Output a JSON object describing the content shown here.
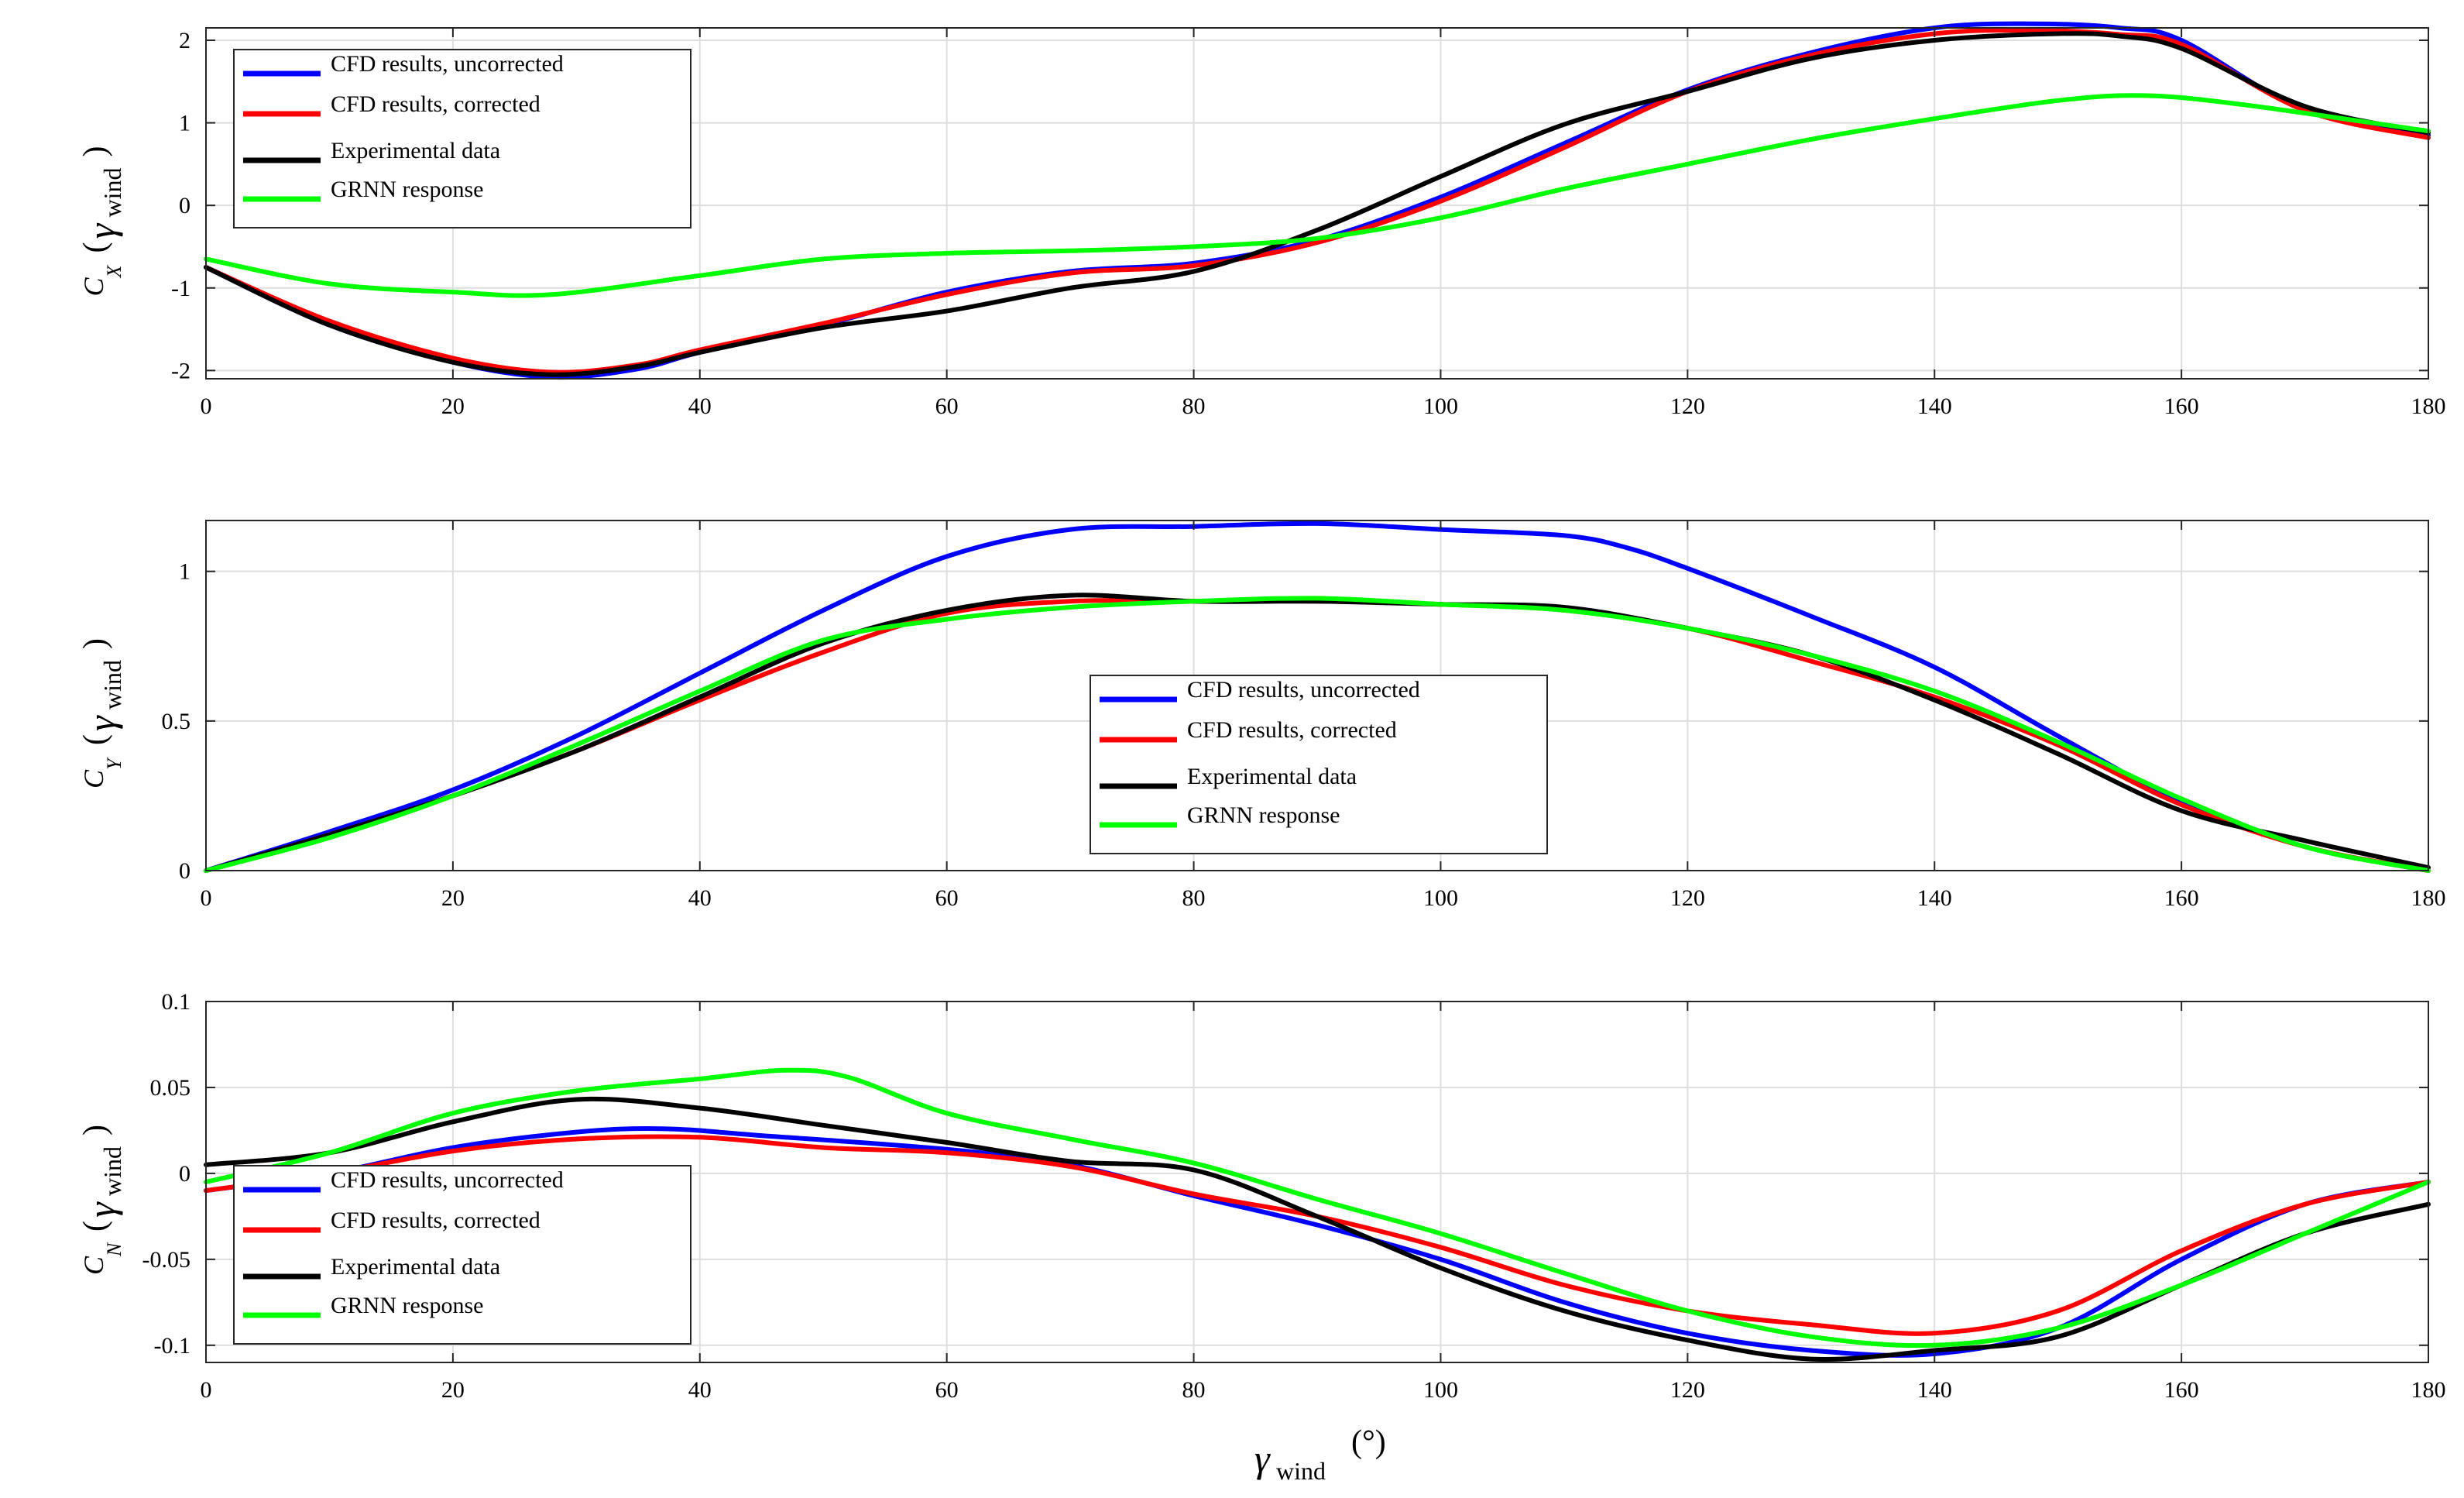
{
  "chart_data": [
    {
      "type": "line",
      "id": "cx",
      "ylabel": {
        "symbol": "C",
        "sub": "X",
        "greek": "γ",
        "wind": "wind",
        "open": "(",
        "close": ")"
      },
      "xlim": [
        0,
        180
      ],
      "ylim": [
        -2.1,
        2.15
      ],
      "xticks": [
        0,
        20,
        40,
        60,
        80,
        100,
        120,
        140,
        160,
        180
      ],
      "yticks": [
        -2,
        -1,
        0,
        1,
        2
      ],
      "ytick_labels": [
        "-2",
        "-1",
        "0",
        "1",
        "2"
      ],
      "legend_position": "top-left",
      "series": [
        {
          "name": "CFD results, uncorrected",
          "color": "#0000ff",
          "x": [
            0,
            10,
            20,
            28,
            35,
            40,
            50,
            60,
            70,
            80,
            90,
            100,
            110,
            120,
            130,
            140,
            148,
            155,
            160,
            170,
            180
          ],
          "y": [
            -0.75,
            -1.45,
            -1.9,
            -2.08,
            -1.98,
            -1.78,
            -1.45,
            -1.05,
            -0.8,
            -0.7,
            -0.42,
            0.1,
            0.75,
            1.4,
            1.85,
            2.15,
            2.2,
            2.15,
            2.0,
            1.15,
            0.85
          ]
        },
        {
          "name": "CFD results, corrected",
          "color": "#ff0000",
          "x": [
            0,
            10,
            20,
            28,
            35,
            40,
            50,
            60,
            70,
            80,
            90,
            100,
            110,
            120,
            130,
            140,
            148,
            155,
            160,
            170,
            180
          ],
          "y": [
            -0.75,
            -1.4,
            -1.85,
            -2.02,
            -1.93,
            -1.75,
            -1.43,
            -1.08,
            -0.82,
            -0.73,
            -0.45,
            0.05,
            0.7,
            1.38,
            1.82,
            2.08,
            2.12,
            2.07,
            1.95,
            1.15,
            0.82
          ]
        },
        {
          "name": "Experimental data",
          "color": "#000000",
          "x": [
            0,
            10,
            20,
            28,
            35,
            40,
            50,
            60,
            70,
            80,
            90,
            100,
            110,
            120,
            130,
            140,
            150,
            155,
            160,
            170,
            180
          ],
          "y": [
            -0.75,
            -1.45,
            -1.9,
            -2.05,
            -1.95,
            -1.78,
            -1.48,
            -1.28,
            -1.0,
            -0.8,
            -0.3,
            0.35,
            0.98,
            1.38,
            1.78,
            2.0,
            2.08,
            2.05,
            1.9,
            1.2,
            0.88
          ]
        },
        {
          "name": "GRNN response",
          "color": "#00ff00",
          "x": [
            0,
            10,
            20,
            28,
            40,
            50,
            60,
            70,
            80,
            90,
            100,
            110,
            120,
            130,
            140,
            150,
            157,
            165,
            180
          ],
          "y": [
            -0.65,
            -0.95,
            -1.05,
            -1.08,
            -0.85,
            -0.65,
            -0.58,
            -0.55,
            -0.5,
            -0.4,
            -0.15,
            0.2,
            0.5,
            0.8,
            1.05,
            1.27,
            1.33,
            1.22,
            0.9
          ]
        }
      ]
    },
    {
      "type": "line",
      "id": "cy",
      "ylabel": {
        "symbol": "C",
        "sub": "Y",
        "greek": "γ",
        "wind": "wind",
        "open": "(",
        "close": ")"
      },
      "xlim": [
        0,
        180
      ],
      "ylim": [
        0,
        1.17
      ],
      "xticks": [
        0,
        20,
        40,
        60,
        80,
        100,
        120,
        140,
        160,
        180
      ],
      "yticks": [
        0,
        0.5,
        1
      ],
      "ytick_labels": [
        "0",
        "0.5",
        "1"
      ],
      "legend_position": "center",
      "series": [
        {
          "name": "CFD results, uncorrected",
          "color": "#0000ff",
          "x": [
            0,
            10,
            20,
            30,
            40,
            50,
            60,
            70,
            80,
            90,
            100,
            110,
            115,
            120,
            130,
            140,
            150,
            160,
            170,
            180
          ],
          "y": [
            0,
            0.13,
            0.27,
            0.45,
            0.66,
            0.87,
            1.05,
            1.14,
            1.15,
            1.16,
            1.14,
            1.12,
            1.08,
            1.01,
            0.85,
            0.68,
            0.45,
            0.23,
            0.08,
            0
          ]
        },
        {
          "name": "CFD results, corrected",
          "color": "#ff0000",
          "x": [
            0,
            10,
            20,
            30,
            40,
            50,
            60,
            70,
            80,
            90,
            100,
            110,
            120,
            130,
            140,
            150,
            160,
            170,
            180
          ],
          "y": [
            0,
            0.12,
            0.25,
            0.4,
            0.57,
            0.73,
            0.86,
            0.9,
            0.9,
            0.9,
            0.89,
            0.87,
            0.81,
            0.7,
            0.58,
            0.42,
            0.22,
            0.08,
            0
          ]
        },
        {
          "name": "Experimental data",
          "color": "#000000",
          "x": [
            0,
            10,
            20,
            30,
            40,
            50,
            60,
            70,
            80,
            90,
            100,
            110,
            120,
            130,
            140,
            150,
            160,
            170,
            180
          ],
          "y": [
            0,
            0.12,
            0.25,
            0.4,
            0.58,
            0.76,
            0.87,
            0.92,
            0.9,
            0.9,
            0.89,
            0.88,
            0.81,
            0.72,
            0.57,
            0.39,
            0.2,
            0.1,
            0.01
          ]
        },
        {
          "name": "GRNN response",
          "color": "#00ff00",
          "x": [
            0,
            10,
            20,
            30,
            40,
            50,
            60,
            70,
            80,
            90,
            100,
            110,
            120,
            130,
            140,
            150,
            160,
            170,
            180
          ],
          "y": [
            0,
            0.11,
            0.25,
            0.42,
            0.6,
            0.77,
            0.84,
            0.88,
            0.9,
            0.91,
            0.89,
            0.87,
            0.81,
            0.72,
            0.6,
            0.43,
            0.24,
            0.08,
            0
          ]
        }
      ]
    },
    {
      "type": "line",
      "id": "cn",
      "ylabel": {
        "symbol": "C",
        "sub": "N",
        "greek": "γ",
        "wind": "wind",
        "open": "(",
        "close": ")"
      },
      "xlabel": {
        "greek": "γ",
        "wind": "wind",
        "unit": "(°)"
      },
      "xlim": [
        0,
        180
      ],
      "ylim": [
        -0.11,
        0.1
      ],
      "xticks": [
        0,
        20,
        40,
        60,
        80,
        100,
        120,
        140,
        160,
        180
      ],
      "yticks": [
        -0.1,
        -0.05,
        0,
        0.05,
        0.1
      ],
      "ytick_labels": [
        "-0.1",
        "-0.05",
        "0",
        "0.05",
        "0.1"
      ],
      "legend_position": "bottom-left",
      "series": [
        {
          "name": "CFD results, uncorrected",
          "color": "#0000ff",
          "x": [
            0,
            10,
            20,
            30,
            37,
            45,
            60,
            70,
            80,
            90,
            100,
            110,
            120,
            130,
            140,
            150,
            160,
            170,
            180
          ],
          "y": [
            -0.01,
            0,
            0.015,
            0.024,
            0.026,
            0.022,
            0.014,
            0.005,
            -0.013,
            -0.03,
            -0.05,
            -0.075,
            -0.093,
            -0.103,
            -0.105,
            -0.09,
            -0.05,
            -0.018,
            -0.005
          ]
        },
        {
          "name": "CFD results, corrected",
          "color": "#ff0000",
          "x": [
            0,
            10,
            20,
            30,
            40,
            50,
            60,
            70,
            80,
            90,
            100,
            110,
            120,
            130,
            140,
            150,
            160,
            170,
            180
          ],
          "y": [
            -0.01,
            0,
            0.013,
            0.02,
            0.021,
            0.015,
            0.012,
            0.004,
            -0.012,
            -0.025,
            -0.043,
            -0.065,
            -0.08,
            -0.088,
            -0.093,
            -0.08,
            -0.045,
            -0.018,
            -0.005
          ]
        },
        {
          "name": "Experimental data",
          "color": "#000000",
          "x": [
            0,
            10,
            20,
            30,
            40,
            50,
            60,
            70,
            80,
            90,
            100,
            110,
            120,
            130,
            140,
            150,
            160,
            170,
            180
          ],
          "y": [
            0.005,
            0.012,
            0.03,
            0.043,
            0.038,
            0.028,
            0.018,
            0.007,
            0.002,
            -0.025,
            -0.055,
            -0.08,
            -0.097,
            -0.108,
            -0.103,
            -0.095,
            -0.065,
            -0.035,
            -0.018
          ]
        },
        {
          "name": "GRNN response",
          "color": "#00ff00",
          "x": [
            0,
            10,
            20,
            30,
            40,
            47,
            52,
            60,
            70,
            80,
            90,
            100,
            110,
            120,
            130,
            140,
            150,
            160,
            170,
            180
          ],
          "y": [
            -0.005,
            0.012,
            0.035,
            0.048,
            0.055,
            0.06,
            0.056,
            0.035,
            0.02,
            0.006,
            -0.015,
            -0.035,
            -0.058,
            -0.08,
            -0.095,
            -0.1,
            -0.09,
            -0.065,
            -0.035,
            -0.005
          ]
        }
      ]
    }
  ]
}
